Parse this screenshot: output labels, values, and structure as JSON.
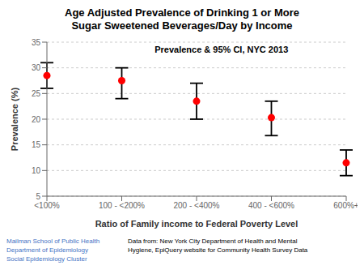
{
  "chart_data": {
    "type": "errorbar",
    "title": "Age Adjusted Prevalence of Drinking 1 or More\nSugar Sweetened Beverages/Day by Income",
    "x_label": "Ratio of Family income to Federal Poverty Level",
    "y_label": "Prevalence (%)",
    "categories": [
      "<100%",
      "100 - <200%",
      "200 - <400%",
      "400 - <600%",
      "600%+"
    ],
    "values": [
      28.5,
      27.5,
      23.5,
      20.3,
      11.5
    ],
    "ci_lower": [
      26.0,
      24.0,
      20.0,
      16.8,
      9.0
    ],
    "ci_upper": [
      31.0,
      30.0,
      27.0,
      23.5,
      14.0
    ],
    "color": "#ff0000",
    "marker": "circle",
    "ylim": [
      5,
      35
    ],
    "yticks": [
      5,
      10,
      15,
      20,
      25,
      30,
      35
    ],
    "grid": true,
    "annotations": [
      {
        "text": "Prevalence & 95% CI, NYC 2013"
      },
      {
        "text": "Mailman School of Public Health\nDepartment of Epidemiology\nSocial Epidemiology Cluster",
        "color": "#4472c4"
      },
      {
        "text": "Data from: New York City Department of Health and Mental\nHygiene, EpiQuery website for Community Health Survey Data",
        "color": "#000000"
      }
    ]
  }
}
